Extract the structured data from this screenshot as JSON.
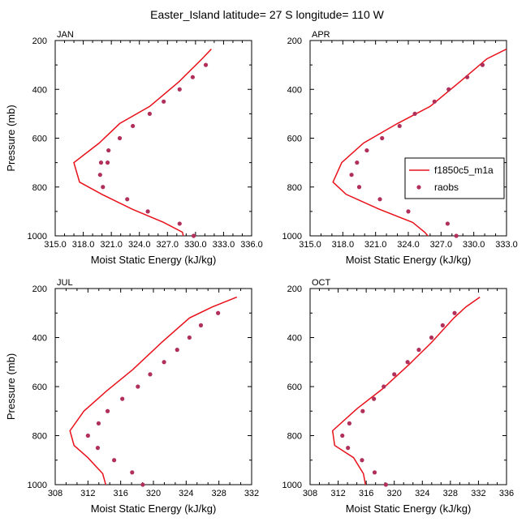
{
  "title": "Easter_Island  latitude= 27 S longitude= 110 W",
  "colors": {
    "model_line": "#e8111b",
    "obs_marker": "#b0305a",
    "axis": "#000000"
  },
  "legend": {
    "model_label": "f1850c5_m1a",
    "obs_label": "raobs"
  },
  "chart_data": [
    {
      "type": "line",
      "panel": "JAN",
      "xlabel": "Moist Static Energy (kJ/kg)",
      "ylabel": "Pressure (mb)",
      "xlim": [
        315,
        336
      ],
      "xticks": [
        315,
        318,
        321,
        324,
        327,
        330,
        333,
        336
      ],
      "xtick_labels": [
        "315.0",
        "318.0",
        "321.0",
        "324.0",
        "327.0",
        "330.0",
        "333.0",
        "336.0"
      ],
      "ylim": [
        1000,
        200
      ],
      "yticks": [
        200,
        400,
        600,
        800,
        1000
      ],
      "ytick_labels": [
        "200",
        "400",
        "600",
        "800",
        "1000"
      ],
      "model": {
        "x": [
          331.7,
          330.7,
          328.2,
          325.1,
          321.9,
          319.7,
          317.0,
          317.6,
          320.0,
          323.2,
          326.6,
          328.6,
          328.8
        ],
        "y": [
          235,
          275,
          370,
          470,
          540,
          620,
          700,
          780,
          830,
          890,
          945,
          985,
          1015
        ]
      },
      "raobs": {
        "x": [
          331.1,
          329.7,
          328.3,
          326.6,
          325.1,
          323.3,
          321.9,
          320.7,
          320.6,
          319.8,
          319.9,
          320.1,
          322.7,
          324.9,
          328.3,
          329.8
        ],
        "y": [
          300,
          350,
          400,
          450,
          500,
          550,
          600,
          650,
          700,
          750,
          700,
          800,
          850,
          900,
          950,
          1000
        ]
      }
    },
    {
      "type": "line",
      "panel": "APR",
      "xlabel": "Moist Static Energy (kJ/kg)",
      "ylabel": "",
      "xlim": [
        315,
        333
      ],
      "xticks": [
        315,
        318,
        321,
        324,
        327,
        330,
        333
      ],
      "xtick_labels": [
        "315.0",
        "318.0",
        "321.0",
        "324.0",
        "327.0",
        "330.0",
        "333.0"
      ],
      "ylim": [
        1000,
        200
      ],
      "yticks": [
        200,
        400,
        600,
        800,
        1000
      ],
      "ytick_labels": [
        "200",
        "400",
        "600",
        "800",
        "1000"
      ],
      "model": {
        "x": [
          333.0,
          331.2,
          328.7,
          326.0,
          323.0,
          319.9,
          317.9,
          317.1,
          318.3,
          321.3,
          324.4,
          325.5,
          326.1
        ],
        "y": [
          235,
          275,
          370,
          470,
          540,
          620,
          700,
          780,
          830,
          890,
          945,
          985,
          1015
        ]
      },
      "raobs": {
        "x": [
          330.8,
          329.4,
          327.7,
          326.4,
          324.6,
          323.2,
          321.6,
          320.2,
          319.3,
          318.8,
          319.5,
          321.4,
          324.0,
          327.6,
          328.4
        ],
        "y": [
          300,
          350,
          400,
          450,
          500,
          550,
          600,
          650,
          700,
          750,
          800,
          850,
          900,
          950,
          1000
        ]
      }
    },
    {
      "type": "line",
      "panel": "JUL",
      "xlabel": "Moist Static Energy (kJ/kg)",
      "ylabel": "Pressure (mb)",
      "xlim": [
        308,
        332
      ],
      "xticks": [
        308,
        312,
        316,
        320,
        324,
        328,
        332
      ],
      "xtick_labels": [
        "308",
        "312",
        "316",
        "320",
        "324",
        "328",
        "332"
      ],
      "ylim": [
        1000,
        200
      ],
      "yticks": [
        200,
        400,
        600,
        800,
        1000
      ],
      "ytick_labels": [
        "200",
        "400",
        "600",
        "800",
        "1000"
      ],
      "model": {
        "x": [
          330.2,
          327.2,
          324.4,
          321.0,
          317.5,
          314.2,
          311.5,
          309.8,
          310.3,
          312.0,
          313.8,
          314.3
        ],
        "y": [
          235,
          275,
          320,
          420,
          530,
          620,
          700,
          780,
          840,
          890,
          955,
          1015
        ]
      },
      "raobs": {
        "x": [
          327.9,
          325.8,
          324.4,
          322.9,
          321.3,
          319.6,
          318.1,
          316.2,
          314.4,
          313.3,
          312.0,
          313.2,
          315.2,
          317.4,
          318.7
        ],
        "y": [
          300,
          350,
          400,
          450,
          500,
          550,
          600,
          650,
          700,
          750,
          800,
          850,
          900,
          950,
          1000
        ]
      }
    },
    {
      "type": "line",
      "panel": "OCT",
      "xlabel": "Moist Static Energy (kJ/kg)",
      "ylabel": "",
      "xlim": [
        308,
        336
      ],
      "xticks": [
        308,
        312,
        316,
        320,
        324,
        328,
        332,
        336
      ],
      "xtick_labels": [
        "308",
        "312",
        "316",
        "320",
        "324",
        "328",
        "332",
        "336"
      ],
      "ylim": [
        1000,
        200
      ],
      "yticks": [
        200,
        400,
        600,
        800,
        1000
      ],
      "ytick_labels": [
        "200",
        "400",
        "600",
        "800",
        "1000"
      ],
      "model": {
        "x": [
          332.2,
          330.2,
          328.5,
          325.3,
          322.1,
          318.3,
          314.7,
          311.2,
          311.5,
          314.2,
          315.6,
          316.0
        ],
        "y": [
          235,
          275,
          320,
          420,
          510,
          610,
          690,
          780,
          840,
          890,
          955,
          1015
        ]
      },
      "raobs": {
        "x": [
          328.6,
          326.9,
          325.3,
          323.5,
          321.9,
          320.0,
          318.5,
          317.1,
          315.5,
          313.6,
          312.6,
          313.4,
          315.4,
          317.2,
          318.8
        ],
        "y": [
          300,
          350,
          400,
          450,
          500,
          550,
          600,
          650,
          700,
          750,
          800,
          850,
          900,
          950,
          1000
        ]
      }
    }
  ]
}
